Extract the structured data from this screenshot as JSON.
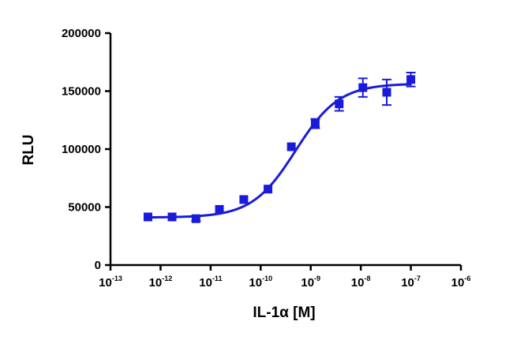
{
  "chart_data": {
    "type": "scatter",
    "xlabel": "IL-1α [M]",
    "ylabel": "RLU",
    "x_scale": "log",
    "xlim": [
      1e-13,
      1e-06
    ],
    "ylim": [
      0,
      200000
    ],
    "x_tick_labels": [
      {
        "base": "10",
        "exp": "-13"
      },
      {
        "base": "10",
        "exp": "-12"
      },
      {
        "base": "10",
        "exp": "-11"
      },
      {
        "base": "10",
        "exp": "-10"
      },
      {
        "base": "10",
        "exp": "-9"
      },
      {
        "base": "10",
        "exp": "-8"
      },
      {
        "base": "10",
        "exp": "-7"
      },
      {
        "base": "10",
        "exp": "-6"
      }
    ],
    "y_tick_labels": [
      "0",
      "50000",
      "100000",
      "150000",
      "200000"
    ],
    "y_ticks": [
      0,
      50000,
      100000,
      150000,
      200000
    ],
    "grid": false,
    "legend": "none",
    "series": [
      {
        "color": "#1a1adb",
        "points": [
          {
            "x": 5.6e-13,
            "y": 41500,
            "err": 0
          },
          {
            "x": 1.7e-12,
            "y": 41500,
            "err": 0
          },
          {
            "x": 5.1e-12,
            "y": 40000,
            "err": 2000
          },
          {
            "x": 1.5e-11,
            "y": 48000,
            "err": 0
          },
          {
            "x": 4.6e-11,
            "y": 56500,
            "err": 0
          },
          {
            "x": 1.4e-10,
            "y": 65500,
            "err": 0
          },
          {
            "x": 4.1e-10,
            "y": 102000,
            "err": 0
          },
          {
            "x": 1.23e-09,
            "y": 122000,
            "err": 4000
          },
          {
            "x": 3.7e-09,
            "y": 139000,
            "err": 6000
          },
          {
            "x": 1.1e-08,
            "y": 153000,
            "err": 8000
          },
          {
            "x": 3.3e-08,
            "y": 149000,
            "err": 11000
          },
          {
            "x": 1e-07,
            "y": 160000,
            "err": 6000
          }
        ],
        "fit": {
          "bottom": 41000,
          "top": 156500,
          "ec50": 5e-10,
          "hill": 1.0
        }
      }
    ]
  }
}
